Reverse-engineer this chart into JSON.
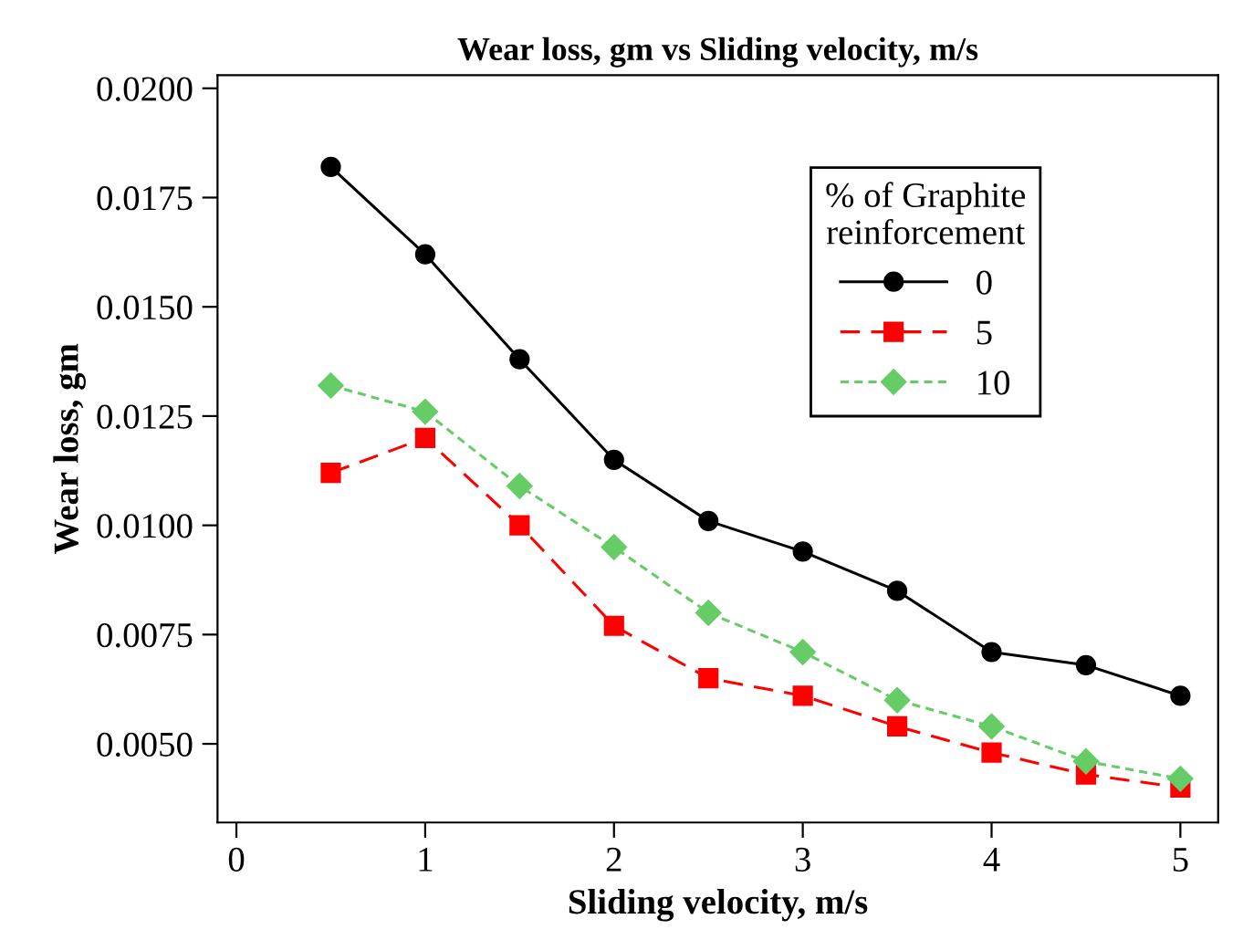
{
  "chart_data": {
    "type": "line",
    "title": "Wear loss, gm vs Sliding velocity, m/s",
    "xlabel": "Sliding velocity, m/s",
    "ylabel": "Wear loss, gm",
    "legend_title": "% of Graphite\nreinforcement",
    "legend": "top right",
    "grid": false,
    "x": [
      0.5,
      1,
      1.5,
      2,
      2.5,
      3,
      3.5,
      4,
      4.5,
      5
    ],
    "xlim": [
      -0.1,
      5.2
    ],
    "xticks": [
      0,
      1,
      2,
      3,
      4,
      5
    ],
    "ylim": [
      0.0032,
      0.0203
    ],
    "yticks": [
      {
        "value": 0.005,
        "label": "0.0050"
      },
      {
        "value": 0.0075,
        "label": "0.0075"
      },
      {
        "value": 0.01,
        "label": "0.0100"
      },
      {
        "value": 0.0125,
        "label": "0.0125"
      },
      {
        "value": 0.015,
        "label": "0.0150"
      },
      {
        "value": 0.0175,
        "label": "0.0175"
      },
      {
        "value": 0.02,
        "label": "0.0200"
      }
    ],
    "series": [
      {
        "name": "0",
        "color": "#000000",
        "marker": "circle",
        "line_style": "solid",
        "values": [
          0.0182,
          0.0162,
          0.0138,
          0.0115,
          0.0101,
          0.0094,
          0.0085,
          0.0071,
          0.0068,
          0.0061
        ]
      },
      {
        "name": "5",
        "color": "#ff0000",
        "marker": "square",
        "line_style": "dashed",
        "values": [
          0.0112,
          0.012,
          0.01,
          0.0077,
          0.0065,
          0.0061,
          0.0054,
          0.0048,
          0.0043,
          0.004
        ]
      },
      {
        "name": "10",
        "color": "#66cc66",
        "marker": "diamond",
        "line_style": "dotted",
        "values": [
          0.0132,
          0.0126,
          0.0109,
          0.0095,
          0.008,
          0.0071,
          0.006,
          0.0054,
          0.0046,
          0.0042
        ]
      }
    ]
  }
}
